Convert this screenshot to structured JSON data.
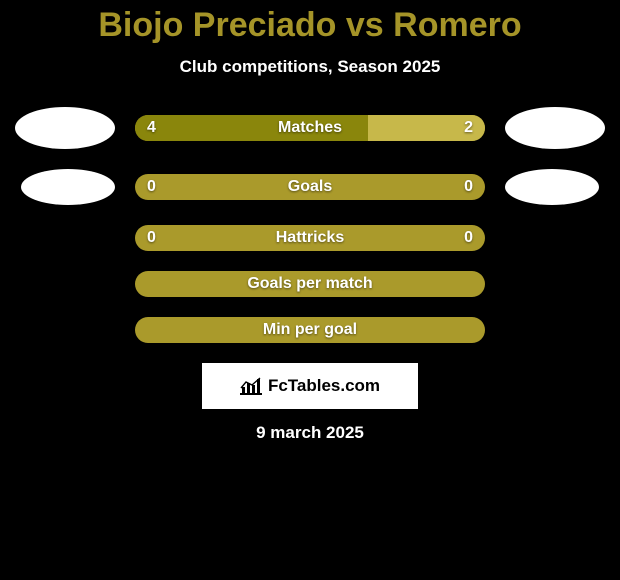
{
  "background_color": "#000000",
  "text_color": "#ffffff",
  "title_color": "#a59428",
  "bar_base_color": "#aa9a2b",
  "bar_fill_color": "#8a860c",
  "bar_light_color": "#c7b84a",
  "flag_color": "#ffffff",
  "title": "Biojo Preciado vs Romero",
  "subtitle": "Club competitions, Season 2025",
  "date": "9 march 2025",
  "logo_text": "FcTables.com",
  "rows": [
    {
      "label": "Matches",
      "left_value": "4",
      "right_value": "2",
      "left_pct": 66.7,
      "right_pct": 33.3,
      "show_flags": true,
      "flag_size": "lg",
      "show_values": true
    },
    {
      "label": "Goals",
      "left_value": "0",
      "right_value": "0",
      "left_pct": 0,
      "right_pct": 0,
      "show_flags": true,
      "flag_size": "md",
      "show_values": true
    },
    {
      "label": "Hattricks",
      "left_value": "0",
      "right_value": "0",
      "left_pct": 0,
      "right_pct": 0,
      "show_flags": false,
      "flag_size": "md",
      "show_values": true
    },
    {
      "label": "Goals per match",
      "left_value": "",
      "right_value": "",
      "left_pct": 0,
      "right_pct": 0,
      "show_flags": false,
      "flag_size": "md",
      "show_values": false
    },
    {
      "label": "Min per goal",
      "left_value": "",
      "right_value": "",
      "left_pct": 0,
      "right_pct": 0,
      "show_flags": false,
      "flag_size": "md",
      "show_values": false
    }
  ]
}
